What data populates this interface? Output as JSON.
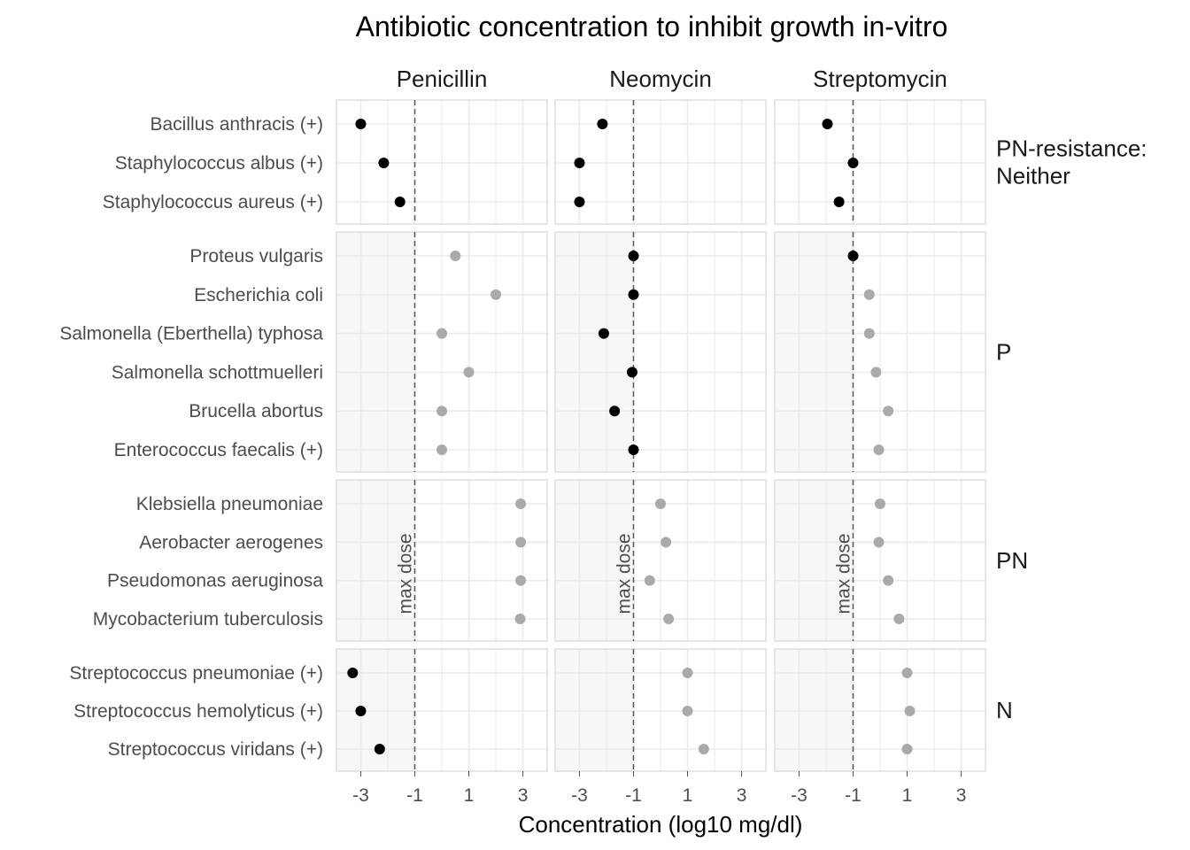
{
  "chart_data": {
    "type": "scatter",
    "title": "Antibiotic concentration to inhibit growth in-vitro",
    "xlabel": "Concentration (log10 mg/dl)",
    "ylabel": "",
    "xlim": [
      -3.9,
      3.9
    ],
    "x_ticks": [
      -3,
      -1,
      1,
      3
    ],
    "x_tick_labels": [
      "-3",
      "-1",
      "1",
      "3"
    ],
    "max_dose": -1,
    "max_dose_label": "max dose",
    "grid": true,
    "colors": {
      "effective": "#000000",
      "not_effective": "#aaaaaa",
      "shade": "#f7f7f7",
      "panel_border": "#dddddd",
      "grid": "#ebebeb",
      "ref_line": "#555555"
    },
    "antibiotics": [
      "Penicillin",
      "Neomycin",
      "Streptomycin"
    ],
    "groups": [
      {
        "label": "PN-resistance:\nNeither",
        "label_lines": [
          "PN-resistance:",
          "Neither"
        ],
        "bacteria": [
          {
            "name": "Bacillus anthracis (+)",
            "values": [
              -3.0,
              -2.15,
              -1.95
            ]
          },
          {
            "name": "Staphylococcus albus (+)",
            "values": [
              -2.15,
              -3.0,
              -1.0
            ]
          },
          {
            "name": "Staphylococcus aureus (+)",
            "values": [
              -1.55,
              -3.0,
              -1.52
            ]
          }
        ]
      },
      {
        "label": "P",
        "label_lines": [
          "P"
        ],
        "bacteria": [
          {
            "name": "Proteus vulgaris",
            "values": [
              0.5,
              -1.0,
              -1.0
            ]
          },
          {
            "name": "Escherichia coli",
            "values": [
              2.0,
              -1.0,
              -0.4
            ]
          },
          {
            "name": "Salmonella (Eberthella) typhosa",
            "values": [
              0.0,
              -2.1,
              -0.4
            ]
          },
          {
            "name": "Salmonella schottmuelleri",
            "values": [
              1.0,
              -1.05,
              -0.15
            ]
          },
          {
            "name": "Brucella abortus",
            "values": [
              0.0,
              -1.7,
              0.3
            ]
          },
          {
            "name": "Enterococcus faecalis (+)",
            "values": [
              0.0,
              -1.0,
              -0.05
            ]
          }
        ]
      },
      {
        "label": "PN",
        "label_lines": [
          "PN"
        ],
        "bacteria": [
          {
            "name": "Klebsiella pneumoniae",
            "values": [
              2.92,
              0.0,
              0.0
            ]
          },
          {
            "name": "Aerobacter aerogenes",
            "values": [
              2.92,
              0.2,
              -0.05
            ]
          },
          {
            "name": "Pseudomonas aeruginosa",
            "values": [
              2.92,
              -0.4,
              0.3
            ]
          },
          {
            "name": "Mycobacterium tuberculosis",
            "values": [
              2.9,
              0.3,
              0.7
            ]
          }
        ]
      },
      {
        "label": "N",
        "label_lines": [
          "N"
        ],
        "bacteria": [
          {
            "name": "Streptococcus pneumoniae (+)",
            "values": [
              -3.3,
              1.0,
              1.0
            ]
          },
          {
            "name": "Streptococcus hemolyticus (+)",
            "values": [
              -3.0,
              1.0,
              1.1
            ]
          },
          {
            "name": "Streptococcus viridans (+)",
            "values": [
              -2.3,
              1.6,
              1.0
            ]
          }
        ]
      }
    ]
  }
}
